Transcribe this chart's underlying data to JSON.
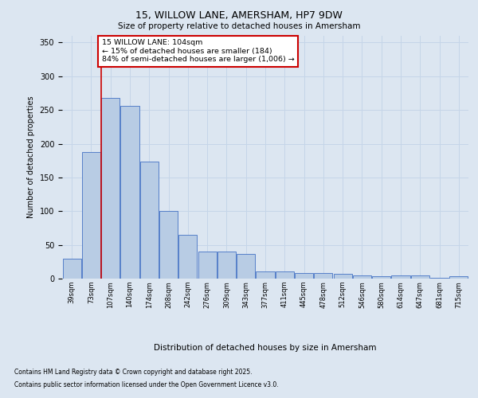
{
  "title_line1": "15, WILLOW LANE, AMERSHAM, HP7 9DW",
  "title_line2": "Size of property relative to detached houses in Amersham",
  "xlabel": "Distribution of detached houses by size in Amersham",
  "ylabel": "Number of detached properties",
  "categories": [
    "39sqm",
    "73sqm",
    "107sqm",
    "140sqm",
    "174sqm",
    "208sqm",
    "242sqm",
    "276sqm",
    "309sqm",
    "343sqm",
    "377sqm",
    "411sqm",
    "445sqm",
    "478sqm",
    "512sqm",
    "546sqm",
    "580sqm",
    "614sqm",
    "647sqm",
    "681sqm",
    "715sqm"
  ],
  "values": [
    30,
    188,
    268,
    256,
    174,
    100,
    65,
    40,
    40,
    37,
    11,
    11,
    8,
    8,
    7,
    5,
    4,
    5,
    5,
    1,
    3
  ],
  "bar_color": "#b8cce4",
  "bar_edge_color": "#4472c4",
  "grid_color": "#c5d5e8",
  "background_color": "#dce6f1",
  "plot_bg_color": "#dce6f1",
  "vline_x": 1.5,
  "vline_color": "#cc0000",
  "annotation_text": "15 WILLOW LANE: 104sqm\n← 15% of detached houses are smaller (184)\n84% of semi-detached houses are larger (1,006) →",
  "annotation_box_color": "#ffffff",
  "annotation_box_edge": "#cc0000",
  "ylim": [
    0,
    360
  ],
  "yticks": [
    0,
    50,
    100,
    150,
    200,
    250,
    300,
    350
  ],
  "footnote1": "Contains HM Land Registry data © Crown copyright and database right 2025.",
  "footnote2": "Contains public sector information licensed under the Open Government Licence v3.0."
}
